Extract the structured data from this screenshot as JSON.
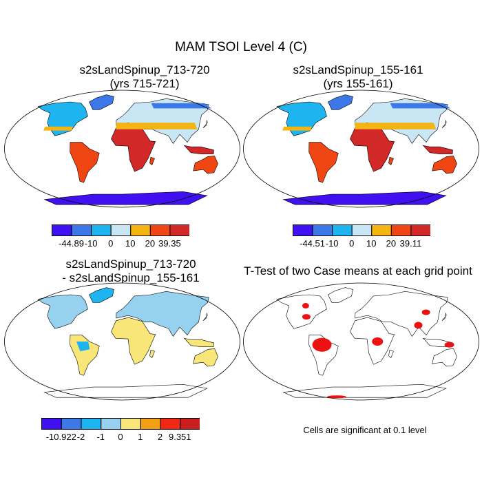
{
  "title": "MAM TSOI Level 4 (C)",
  "panels": [
    {
      "line1": "s2sLandSpinup_713-720",
      "line2": "(yrs 715-721)"
    },
    {
      "line1": "s2sLandSpinup_155-161",
      "line2": "(yrs 155-161)"
    },
    {
      "line1": "s2sLandSpinup_713-720",
      "line2": "- s2sLandSpinup_155-161"
    },
    {
      "line1": "T-Test of two Case means at each grid point",
      "line2": ""
    }
  ],
  "colorbars": [
    {
      "colors": [
        "#4010f0",
        "#3c78e8",
        "#1eb4f0",
        "#c8e6f4",
        "#f4b414",
        "#f04614",
        "#d22828"
      ],
      "labels": [
        "-44.89",
        "-10",
        "0",
        "10",
        "20",
        "39.35"
      ]
    },
    {
      "colors": [
        "#4010f0",
        "#3c78e8",
        "#1eb4f0",
        "#c8e6f4",
        "#f4b414",
        "#f04614",
        "#d22828"
      ],
      "labels": [
        "-44.51",
        "-10",
        "0",
        "10",
        "20",
        "39.11"
      ]
    },
    {
      "colors": [
        "#4010f0",
        "#3c78e8",
        "#1eb4f0",
        "#96d2f0",
        "#f8e678",
        "#f4a014",
        "#f02814",
        "#c81e1e"
      ],
      "labels": [
        "-10.922",
        "-2",
        "-1",
        "0",
        "1",
        "2",
        "9.351"
      ]
    }
  ],
  "significance_note": "Cells are significant at 0.1 level"
}
